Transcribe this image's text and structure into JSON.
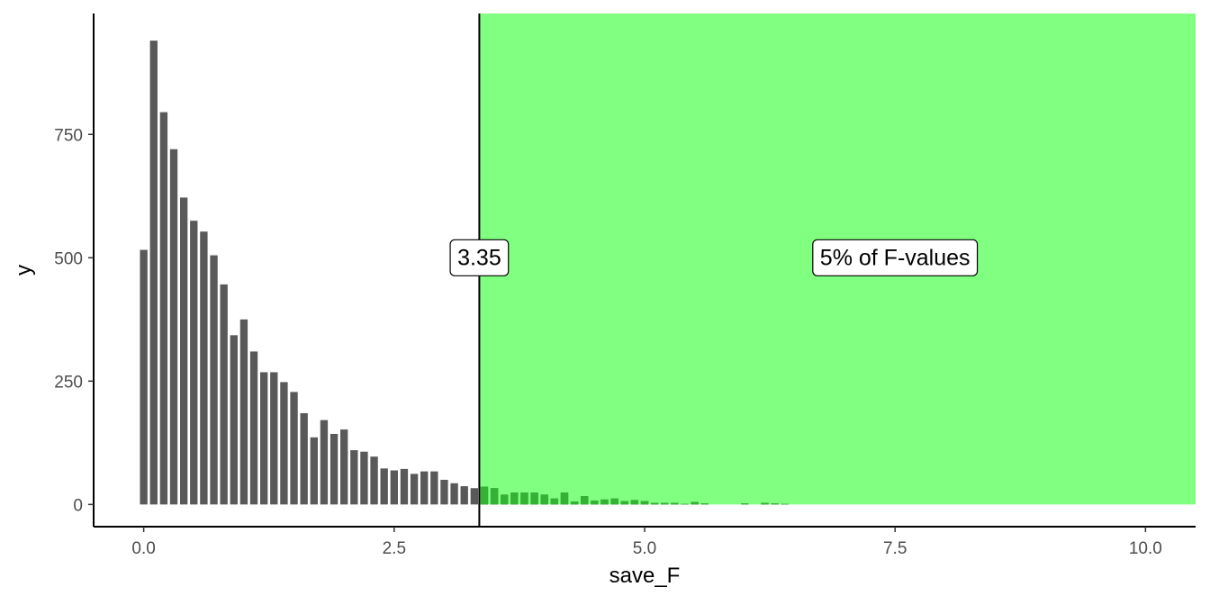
{
  "chart_data": {
    "type": "bar",
    "xlabel": "save_F",
    "ylabel": "y",
    "xlim": [
      -0.5,
      10.5
    ],
    "ylim": [
      -45,
      995
    ],
    "x_ticks": [
      0.0,
      2.5,
      5.0,
      7.5,
      10.0
    ],
    "x_tick_labels": [
      "0.0",
      "2.5",
      "5.0",
      "7.5",
      "10.0"
    ],
    "y_ticks": [
      0,
      250,
      500,
      750
    ],
    "y_tick_labels": [
      "0",
      "250",
      "500",
      "750"
    ],
    "grid": false,
    "bar_width": 0.075,
    "bar_color": "#595959",
    "highlight_color": "#80ff80",
    "highlight_bar_color": "#33b233",
    "x": [
      0.0,
      0.1,
      0.2,
      0.3,
      0.4,
      0.5,
      0.6,
      0.7,
      0.8,
      0.9,
      1.0,
      1.1,
      1.2,
      1.3,
      1.4,
      1.5,
      1.6,
      1.7,
      1.8,
      1.9,
      2.0,
      2.1,
      2.2,
      2.3,
      2.4,
      2.5,
      2.6,
      2.7,
      2.8,
      2.9,
      3.0,
      3.1,
      3.2,
      3.3,
      3.4,
      3.5,
      3.6,
      3.7,
      3.8,
      3.9,
      4.0,
      4.1,
      4.2,
      4.3,
      4.4,
      4.5,
      4.6,
      4.7,
      4.8,
      4.9,
      5.0,
      5.1,
      5.2,
      5.3,
      5.4,
      5.5,
      5.6,
      5.7,
      5.8,
      5.9,
      6.0,
      6.1,
      6.2,
      6.3,
      6.4
    ],
    "values": [
      516,
      940,
      795,
      720,
      622,
      575,
      553,
      505,
      446,
      343,
      375,
      310,
      268,
      268,
      248,
      228,
      185,
      136,
      171,
      143,
      152,
      110,
      107,
      97,
      73,
      69,
      72,
      62,
      67,
      67,
      50,
      43,
      37,
      33,
      36,
      33,
      20,
      24,
      24,
      24,
      20,
      12,
      24,
      6,
      17,
      8,
      10,
      12,
      7,
      9,
      7,
      3,
      3,
      3,
      1,
      5,
      2,
      0,
      0,
      0,
      2,
      0,
      3,
      2,
      1
    ],
    "threshold": {
      "x": 3.35,
      "label": "3.35",
      "label_y": 500
    },
    "region": {
      "x_start": 3.35,
      "x_end": 10.5,
      "y_start": 0,
      "y_end": 995,
      "label": "5% of F-values",
      "label_x": 7.5,
      "label_y": 500
    }
  }
}
